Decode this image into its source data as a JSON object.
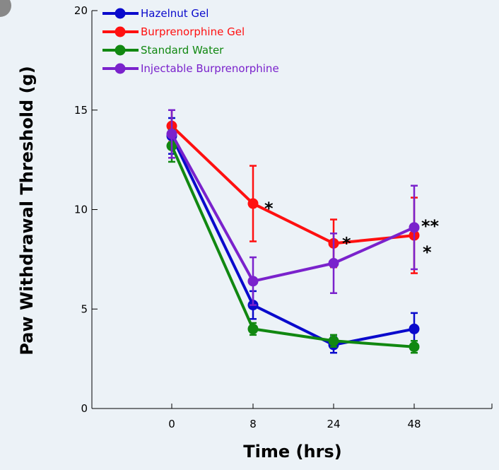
{
  "chart_data": {
    "type": "line",
    "title": "",
    "xlabel": "Time (hrs)",
    "ylabel": "Paw Withdrawal Threshold (g)",
    "categories": [
      "0",
      "8",
      "24",
      "48"
    ],
    "ylim": [
      0,
      20
    ],
    "yticks": [
      0,
      5,
      10,
      15,
      20
    ],
    "grid": false,
    "legend_position": "top-left",
    "series": [
      {
        "name": "Hazelnut Gel",
        "color": "#0a0acc",
        "values": [
          13.7,
          5.2,
          3.2,
          4.0
        ],
        "errors": [
          0.9,
          0.7,
          0.4,
          0.8
        ]
      },
      {
        "name": "Burprenorphine Gel",
        "color": "#ff1010",
        "values": [
          14.2,
          10.3,
          8.3,
          8.7
        ],
        "errors": [
          0.8,
          1.9,
          1.2,
          1.9
        ]
      },
      {
        "name": "Standard Water",
        "color": "#118811",
        "values": [
          13.2,
          4.0,
          3.4,
          3.1
        ],
        "errors": [
          0.8,
          0.3,
          0.3,
          0.3
        ]
      },
      {
        "name": "Injectable Burprenorphine",
        "color": "#7a22cc",
        "values": [
          13.8,
          6.4,
          7.3,
          9.1
        ],
        "errors": [
          1.2,
          1.2,
          1.5,
          2.1
        ]
      }
    ],
    "annotations": [
      {
        "text": "*",
        "category": "8",
        "value": 10.3
      },
      {
        "text": "*",
        "category": "24",
        "value": 8.3
      },
      {
        "text": "**",
        "category": "48",
        "value": 9.1
      },
      {
        "text": "*",
        "category": "48",
        "value": 8.7
      }
    ]
  }
}
